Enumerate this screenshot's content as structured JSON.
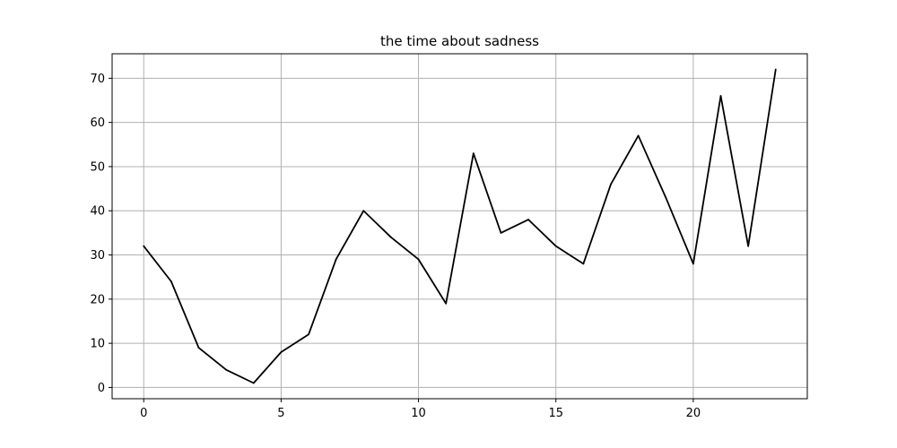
{
  "chart_data": {
    "type": "line",
    "title": "the time about sadness",
    "xlabel": "",
    "ylabel": "",
    "x": [
      0,
      1,
      2,
      3,
      4,
      5,
      6,
      7,
      8,
      9,
      10,
      11,
      12,
      13,
      14,
      15,
      16,
      17,
      18,
      19,
      20,
      21,
      22,
      23
    ],
    "series": [
      {
        "values": [
          32,
          24,
          9,
          4,
          1,
          8,
          12,
          29,
          40,
          34,
          29,
          19,
          53,
          35,
          38,
          32,
          28,
          46,
          57,
          43,
          28,
          66,
          32,
          72
        ],
        "color": "#000000"
      }
    ],
    "xlim": [
      -1.15,
      24.15
    ],
    "ylim": [
      -2.55,
      75.55
    ],
    "xticks": [
      0,
      5,
      10,
      15,
      20
    ],
    "yticks": [
      0,
      10,
      20,
      30,
      40,
      50,
      60,
      70
    ],
    "grid": true,
    "grid_color": "#b0b0b0"
  }
}
